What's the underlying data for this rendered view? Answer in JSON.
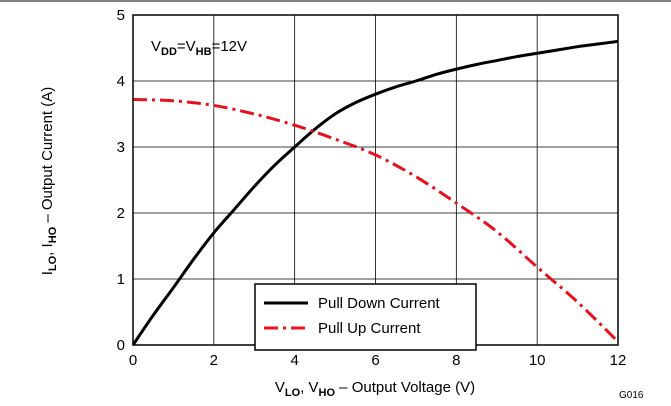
{
  "chart_data": {
    "type": "line",
    "annotation": {
      "main": "V",
      "sub1": "DD",
      "mid": "=V",
      "sub2": "HB",
      "tail": "=12V"
    },
    "xlabel": {
      "v1": "V",
      "s1": "LO",
      "sep": ", V",
      "s2": "HO",
      "rest": " – Output Voltage (V)"
    },
    "ylabel": {
      "v1": "I",
      "s1": "LO",
      "sep": ", I",
      "s2": "HO",
      "rest": " – Output Current (A)"
    },
    "xlim": [
      0,
      12
    ],
    "ylim": [
      0,
      5
    ],
    "xticks": [
      "0",
      "2",
      "4",
      "6",
      "8",
      "10",
      "12"
    ],
    "yticks": [
      "0",
      "1",
      "2",
      "3",
      "4",
      "5"
    ],
    "grid": true,
    "legend_position": "bottom-center",
    "figure_code": "G016",
    "series": [
      {
        "name": "Pull Down Current",
        "color": "#000000",
        "style": "solid",
        "x": [
          0,
          0.5,
          1,
          1.5,
          2,
          2.5,
          3,
          3.5,
          4,
          4.5,
          5,
          5.5,
          6,
          6.5,
          7,
          7.5,
          8,
          8.5,
          9,
          9.5,
          10,
          10.5,
          11,
          11.5,
          12
        ],
        "y": [
          0,
          0.45,
          0.87,
          1.3,
          1.7,
          2.05,
          2.4,
          2.72,
          3.0,
          3.27,
          3.5,
          3.67,
          3.8,
          3.91,
          4.0,
          4.1,
          4.18,
          4.25,
          4.31,
          4.37,
          4.42,
          4.47,
          4.52,
          4.56,
          4.6
        ]
      },
      {
        "name": "Pull Up Current",
        "color": "#e8101c",
        "style": "dashed",
        "x": [
          0,
          1,
          2,
          3,
          4,
          5,
          6,
          7,
          8,
          9,
          10,
          11,
          12
        ],
        "y": [
          3.72,
          3.7,
          3.63,
          3.5,
          3.33,
          3.12,
          2.88,
          2.55,
          2.15,
          1.72,
          1.18,
          0.65,
          0.05
        ]
      }
    ]
  }
}
